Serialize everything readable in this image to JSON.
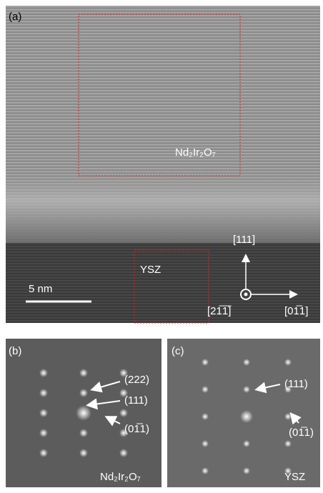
{
  "panels": [
    {
      "label": "(a)",
      "annotations": [
        "Nd₂Ir₂O₇",
        "YSZ",
        "5 nm",
        "[111]",
        "[21̅1̅]",
        "[01̅1]"
      ]
    },
    {
      "label": "(b)",
      "annotations": [
        "(222)",
        "(111)",
        "(01̅1)",
        "Nd₂Ir₂O₇"
      ]
    },
    {
      "label": "(c)",
      "annotations": [
        "(111)",
        "(01̅1)",
        "YSZ"
      ]
    }
  ]
}
